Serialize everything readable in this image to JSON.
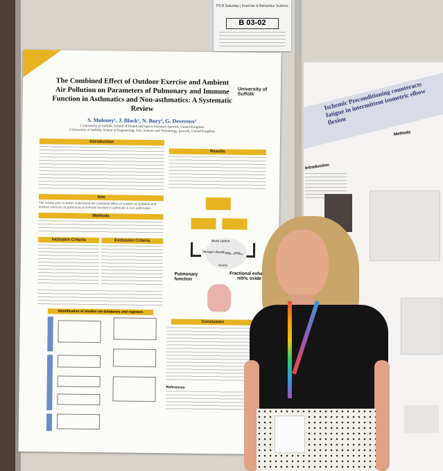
{
  "sign": {
    "header": "PS B Saturday | Exercise & Behaviour Science",
    "code": "B 03-02"
  },
  "poster": {
    "logo": "University of Suffolk",
    "title": "The Combined Effect of Outdoor Exercise and Ambient Air Pollution on Parameters of Pulmonary and Immune Function in Asthmatics and Non-asthmatics: A Systematic Review",
    "authors": "S. Moloney¹, J. Black¹, N. Bury², G. Devereux¹",
    "affiliations": [
      "1 University of Suffolk, School of Health and Sports Sciences, Ipswich, United Kingdom",
      "2 University of Suffolk, School of Engineering, Arts, Science and Technology, Ipswich, United Kingdom"
    ],
    "sections": {
      "introduction": "Introduction",
      "aim": "Aim",
      "methods": "Methods",
      "inclusion": "Inclusion Criteria",
      "exclusion": "Exclusion Criteria",
      "results": "Results",
      "conclusion": "Conclusion",
      "references": "References"
    },
    "aim_text": "The review aims to better understand the combined effect of outdoor air pollution and outdoor exercise on pulmonary & immune function in asthmatic & non-asthmatics.",
    "flow_heading": "Identification of studies via databases and registers",
    "diagram": {
      "pollutants": [
        "Black carbon",
        "Nitrogen dioxide",
        "Ozone"
      ],
      "pm": "PM₂.₅/PM₁₀",
      "pulmonary": "Pulmonary function",
      "feno": "Fractional exhaled nitric oxide"
    }
  },
  "right_poster": {
    "title": "Ischemic Preconditioning counteracts fatigue in intermittent isometric elbow flexion",
    "introduction": "Introduction",
    "methods": "Methods"
  }
}
